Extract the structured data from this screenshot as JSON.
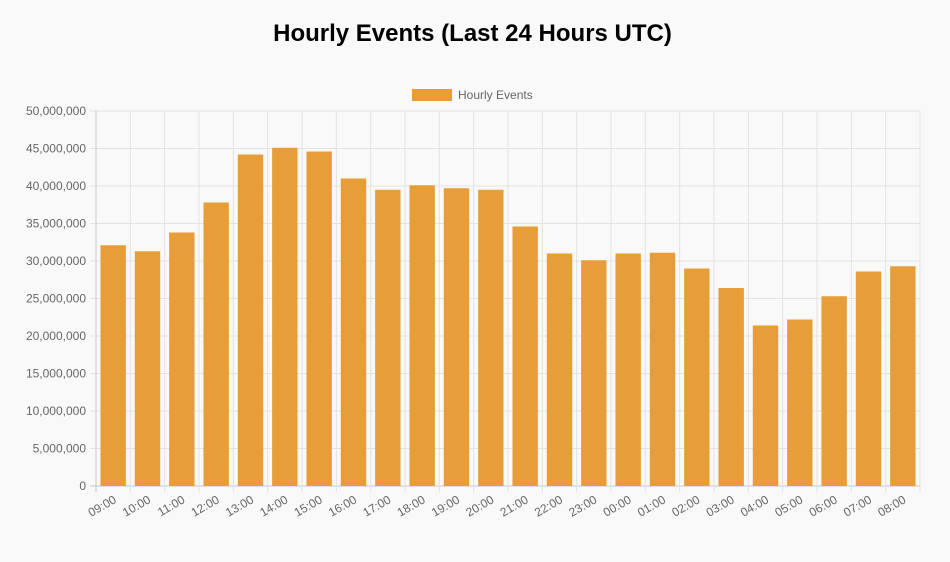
{
  "chart_data": {
    "type": "bar",
    "title": "Hourly Events (Last 24 Hours UTC)",
    "categories": [
      "09:00",
      "10:00",
      "11:00",
      "12:00",
      "13:00",
      "14:00",
      "15:00",
      "16:00",
      "17:00",
      "18:00",
      "19:00",
      "20:00",
      "21:00",
      "22:00",
      "23:00",
      "00:00",
      "01:00",
      "02:00",
      "03:00",
      "04:00",
      "05:00",
      "06:00",
      "07:00",
      "08:00"
    ],
    "series": [
      {
        "name": "Hourly Events",
        "color": "#e89e38",
        "values": [
          32100000,
          31300000,
          33800000,
          37800000,
          44200000,
          45100000,
          44600000,
          41000000,
          39500000,
          40100000,
          39700000,
          39500000,
          34600000,
          31000000,
          30100000,
          31000000,
          31100000,
          29000000,
          26400000,
          21400000,
          22200000,
          25300000,
          28600000,
          29300000
        ]
      }
    ],
    "y_ticks": [
      "0",
      "5,000,000",
      "10,000,000",
      "15,000,000",
      "20,000,000",
      "25,000,000",
      "30,000,000",
      "35,000,000",
      "40,000,000",
      "45,000,000",
      "50,000,000"
    ],
    "ylim": [
      0,
      50000000
    ],
    "grid": true,
    "legend_position": "top-center"
  }
}
